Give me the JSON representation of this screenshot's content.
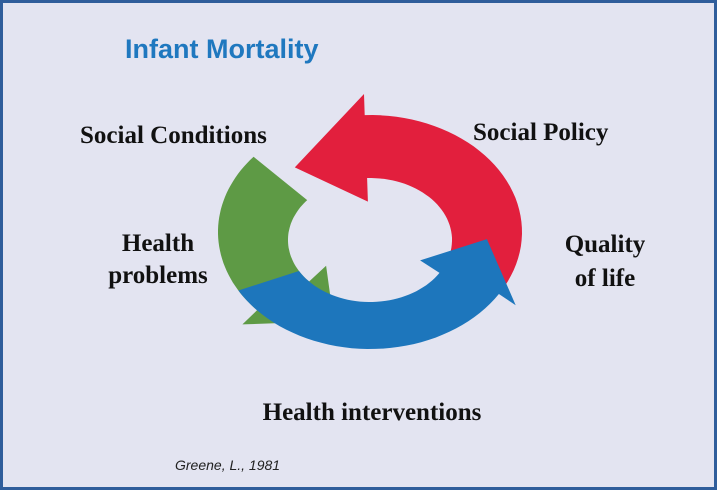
{
  "title": "Infant Mortality",
  "labels": {
    "social_conditions": "Social Conditions",
    "social_policy": "Social Policy",
    "quality_of_life": [
      "Quality",
      "of life"
    ],
    "health_problems": [
      "Health",
      "problems"
    ],
    "health_interventions": "Health interventions"
  },
  "citation": "Greene, L., 1981"
}
